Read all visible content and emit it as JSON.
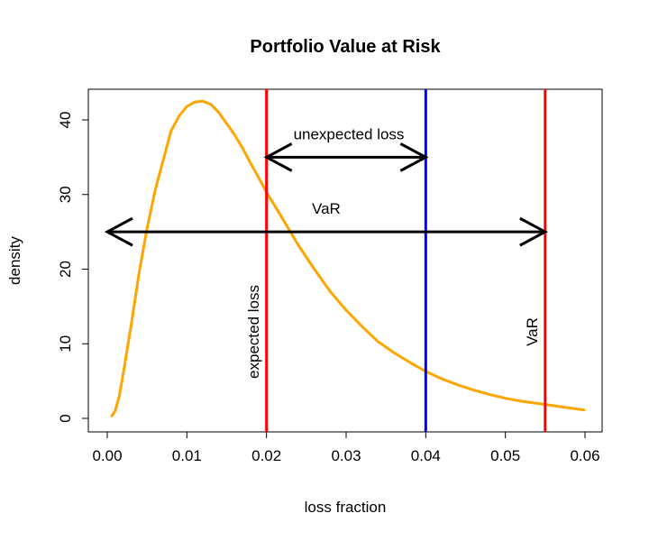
{
  "chart_data": {
    "type": "line",
    "title": "Portfolio Value at Risk",
    "xlabel": "loss fraction",
    "ylabel": "density",
    "xlim": [
      0.0,
      0.06
    ],
    "ylim": [
      0,
      43
    ],
    "xticks": [
      0.0,
      0.01,
      0.02,
      0.03,
      0.04,
      0.05,
      0.06
    ],
    "xtick_labels": [
      "0.00",
      "0.01",
      "0.02",
      "0.03",
      "0.04",
      "0.05",
      "0.06"
    ],
    "yticks": [
      0,
      10,
      20,
      30,
      40
    ],
    "ytick_labels": [
      "0",
      "10",
      "20",
      "30",
      "40"
    ],
    "grid": false,
    "series": [
      {
        "color": "#FFA500",
        "x": [
          0.0005,
          0.001,
          0.0015,
          0.002,
          0.003,
          0.004,
          0.005,
          0.006,
          0.007,
          0.008,
          0.009,
          0.01,
          0.011,
          0.012,
          0.013,
          0.014,
          0.015,
          0.016,
          0.017,
          0.018,
          0.019,
          0.02,
          0.022,
          0.024,
          0.026,
          0.028,
          0.03,
          0.032,
          0.034,
          0.036,
          0.038,
          0.04,
          0.042,
          0.044,
          0.046,
          0.048,
          0.05,
          0.052,
          0.054,
          0.056,
          0.058,
          0.06
        ],
        "y": [
          0.2,
          1.0,
          3.0,
          6.0,
          12.5,
          19.5,
          25.5,
          30.5,
          34.5,
          38.5,
          40.5,
          41.8,
          42.4,
          42.5,
          42.1,
          41.0,
          39.5,
          38.0,
          36.2,
          34.2,
          32.3,
          30.3,
          26.8,
          23.2,
          20.0,
          17.0,
          14.5,
          12.3,
          10.3,
          8.8,
          7.5,
          6.3,
          5.3,
          4.5,
          3.8,
          3.2,
          2.7,
          2.3,
          2.0,
          1.7,
          1.4,
          1.1
        ]
      }
    ],
    "vlines": [
      {
        "x": 0.02,
        "color": "#FF0000"
      },
      {
        "x": 0.04,
        "color": "#0000FF"
      },
      {
        "x": 0.055,
        "color": "#FF0000"
      }
    ],
    "arrows": [
      {
        "x_start": 0.02,
        "x_end": 0.04,
        "y": 35,
        "label": "unexpected loss"
      },
      {
        "x_start": 0.0,
        "x_end": 0.055,
        "y": 25,
        "label": "VaR"
      }
    ],
    "vertical_annotations": [
      {
        "text": "expected loss",
        "x": 0.019
      },
      {
        "text": "VaR",
        "x": 0.054
      }
    ]
  }
}
